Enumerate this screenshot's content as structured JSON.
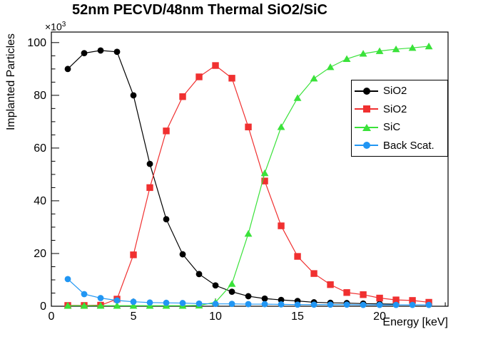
{
  "chart_data": {
    "type": "line",
    "title": "52nm PECVD/48nm Thermal SiO2/SiC",
    "xlabel": "Energy [keV]",
    "ylabel": "Implanted Particles",
    "y_multiplier_base": "×10",
    "y_multiplier_exponent": "3",
    "grid": false,
    "legend_position": "middle-right",
    "x": {
      "min": 0,
      "max": 24.17,
      "major_ticks": [
        0,
        5,
        10,
        15,
        20
      ],
      "minor_step": 1
    },
    "y": {
      "min": 0,
      "max": 104,
      "major_ticks": [
        0,
        20,
        40,
        60,
        80,
        100
      ],
      "minor_step": 5
    },
    "y_unit": "x10^3 particles",
    "series": [
      {
        "id": "sio2-pecvd",
        "name": "SiO2",
        "color": "#000000",
        "marker": "circle",
        "points": [
          [
            1,
            90
          ],
          [
            2,
            96
          ],
          [
            3,
            97
          ],
          [
            4,
            96.5
          ],
          [
            5,
            80
          ],
          [
            6,
            54
          ],
          [
            7,
            33
          ],
          [
            8,
            19.7
          ],
          [
            9,
            12.2
          ],
          [
            10,
            7.9
          ],
          [
            11,
            5.5
          ],
          [
            12,
            3.8
          ],
          [
            13,
            2.9
          ],
          [
            14,
            2.4
          ],
          [
            15,
            2
          ],
          [
            16,
            1.5
          ],
          [
            17,
            1.3
          ],
          [
            18,
            1.2
          ],
          [
            19,
            1
          ],
          [
            20,
            0.9
          ],
          [
            21,
            0.8
          ]
        ]
      },
      {
        "id": "sio2-thermal",
        "name": "SiO2",
        "color": "#f03030",
        "marker": "square",
        "points": [
          [
            1,
            0.3
          ],
          [
            2,
            0.3
          ],
          [
            3,
            0.4
          ],
          [
            4,
            2.7
          ],
          [
            5,
            19.5
          ],
          [
            6,
            45
          ],
          [
            7,
            66.5
          ],
          [
            8,
            79.5
          ],
          [
            9,
            87
          ],
          [
            10,
            91.3
          ],
          [
            11,
            86.5
          ],
          [
            12,
            68
          ],
          [
            13,
            47.5
          ],
          [
            14,
            30.5
          ],
          [
            15,
            18.9
          ],
          [
            16,
            12.4
          ],
          [
            17,
            8.2
          ],
          [
            18,
            5.2
          ],
          [
            19,
            4.4
          ],
          [
            20,
            3.1
          ],
          [
            21,
            2.4
          ],
          [
            22,
            2.2
          ],
          [
            23,
            1.5
          ]
        ]
      },
      {
        "id": "sic",
        "name": "SiC",
        "color": "#3ae23a",
        "marker": "triangle",
        "points": [
          [
            1,
            0.2
          ],
          [
            2,
            0.2
          ],
          [
            3,
            0.2
          ],
          [
            4,
            0.2
          ],
          [
            5,
            0.2
          ],
          [
            6,
            0.2
          ],
          [
            7,
            0.2
          ],
          [
            8,
            0.2
          ],
          [
            9,
            0.3
          ],
          [
            10,
            1.5
          ],
          [
            11,
            8.5
          ],
          [
            12,
            27.5
          ],
          [
            13,
            50.5
          ],
          [
            14,
            68
          ],
          [
            15,
            79
          ],
          [
            16,
            86.4
          ],
          [
            17,
            90.7
          ],
          [
            18,
            93.8
          ],
          [
            19,
            95.8
          ],
          [
            20,
            96.8
          ],
          [
            21,
            97.5
          ],
          [
            22,
            98
          ],
          [
            23,
            98.6
          ]
        ]
      },
      {
        "id": "back-scatter",
        "name": "Back Scat.",
        "color": "#2196f3",
        "marker": "circle",
        "points": [
          [
            1,
            10.3
          ],
          [
            2,
            4.6
          ],
          [
            3,
            3.1
          ],
          [
            4,
            2.2
          ],
          [
            5,
            1.7
          ],
          [
            6,
            1.4
          ],
          [
            7,
            1.3
          ],
          [
            8,
            1.2
          ],
          [
            9,
            1
          ],
          [
            10,
            0.9
          ],
          [
            11,
            0.9
          ],
          [
            12,
            0.8
          ],
          [
            13,
            0.8
          ],
          [
            14,
            0.7
          ],
          [
            15,
            0.6
          ],
          [
            16,
            0.6
          ],
          [
            17,
            0.6
          ],
          [
            18,
            0.6
          ],
          [
            19,
            0.5
          ],
          [
            20,
            0.5
          ],
          [
            21,
            0.5
          ],
          [
            22,
            0.5
          ],
          [
            23,
            0.5
          ]
        ]
      }
    ]
  }
}
